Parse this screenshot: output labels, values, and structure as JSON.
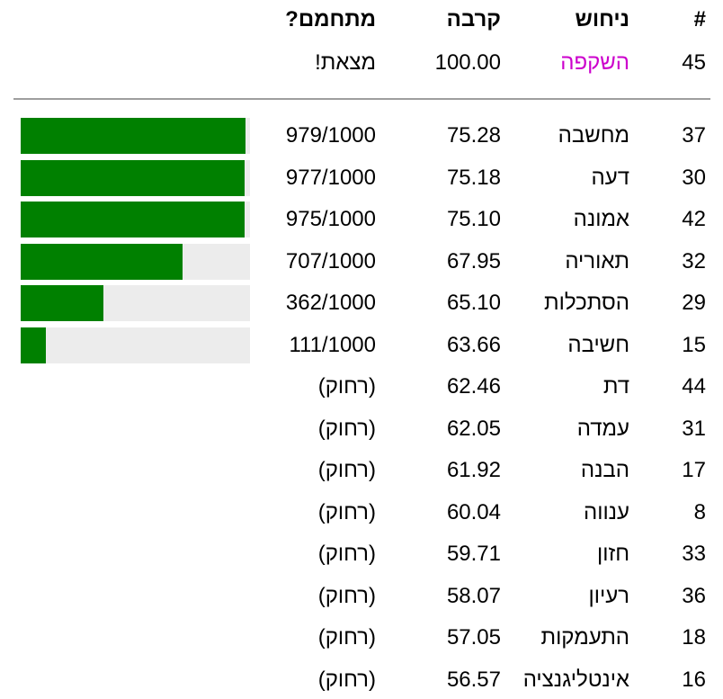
{
  "table": {
    "headers": {
      "rank": "#",
      "guess": "ניחוש",
      "proximity": "קרבה",
      "warm": "מתחמם?"
    },
    "found_row": {
      "rank": "45",
      "guess": "השקפה",
      "proximity": "100.00",
      "warm": "מצאת!"
    },
    "rows": [
      {
        "rank": "37",
        "guess": "מחשבה",
        "proximity": "75.28",
        "warm": "979/1000",
        "bar_value": 979
      },
      {
        "rank": "30",
        "guess": "דעה",
        "proximity": "75.18",
        "warm": "977/1000",
        "bar_value": 977
      },
      {
        "rank": "42",
        "guess": "אמונה",
        "proximity": "75.10",
        "warm": "975/1000",
        "bar_value": 975
      },
      {
        "rank": "32",
        "guess": "תאוריה",
        "proximity": "67.95",
        "warm": "707/1000",
        "bar_value": 707
      },
      {
        "rank": "29",
        "guess": "הסתכלות",
        "proximity": "65.10",
        "warm": "362/1000",
        "bar_value": 362
      },
      {
        "rank": "15",
        "guess": "חשיבה",
        "proximity": "63.66",
        "warm": "111/1000",
        "bar_value": 111
      },
      {
        "rank": "44",
        "guess": "דת",
        "proximity": "62.46",
        "warm": "(רחוק)",
        "bar_value": null
      },
      {
        "rank": "31",
        "guess": "עמדה",
        "proximity": "62.05",
        "warm": "(רחוק)",
        "bar_value": null
      },
      {
        "rank": "17",
        "guess": "הבנה",
        "proximity": "61.92",
        "warm": "(רחוק)",
        "bar_value": null
      },
      {
        "rank": "8",
        "guess": "ענווה",
        "proximity": "60.04",
        "warm": "(רחוק)",
        "bar_value": null
      },
      {
        "rank": "33",
        "guess": "חזון",
        "proximity": "59.71",
        "warm": "(רחוק)",
        "bar_value": null
      },
      {
        "rank": "36",
        "guess": "רעיון",
        "proximity": "58.07",
        "warm": "(רחוק)",
        "bar_value": null
      },
      {
        "rank": "18",
        "guess": "התעמקות",
        "proximity": "57.05",
        "warm": "(רחוק)",
        "bar_value": null
      },
      {
        "rank": "16",
        "guess": "אינטליגנציה",
        "proximity": "56.57",
        "warm": "(רחוק)",
        "bar_value": null
      }
    ],
    "bar_scale_max": 1000,
    "colors": {
      "found_word": "#cc00cc",
      "bar_fill": "#008000",
      "bar_track": "#ececec"
    }
  }
}
